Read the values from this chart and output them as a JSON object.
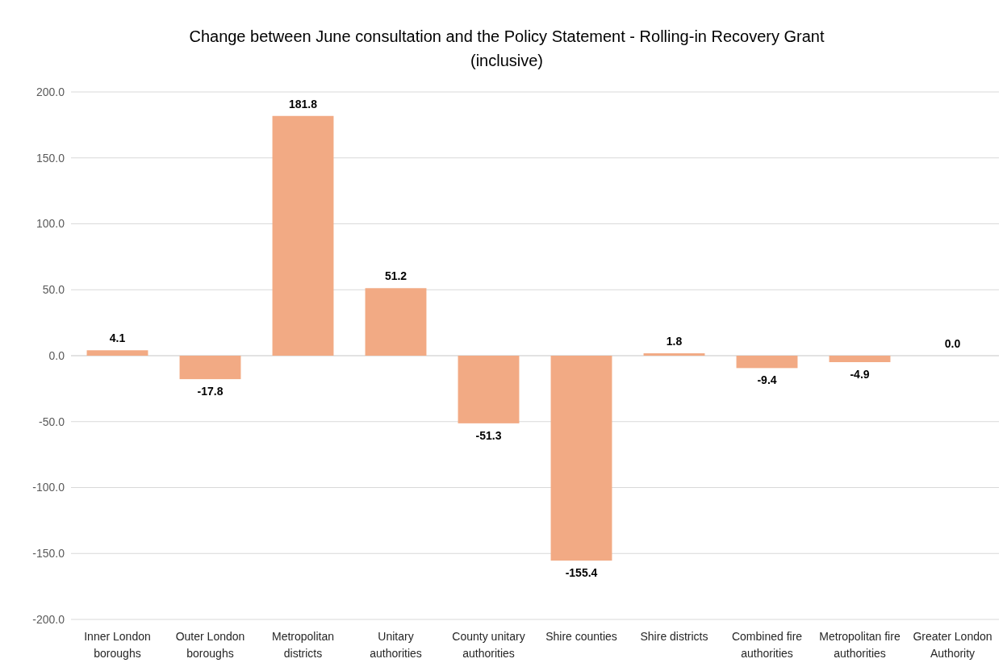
{
  "chart_data": {
    "type": "bar",
    "title": "Change between June consultation and the Policy Statement - Rolling-in Recovery Grant (inclusive)",
    "categories": [
      "Inner London boroughs",
      "Outer London boroughs",
      "Metropolitan districts",
      "Unitary authorities",
      "County unitary authorities",
      "Shire counties",
      "Shire districts",
      "Combined fire authorities",
      "Metropolitan fire authorities",
      "Greater London Authority"
    ],
    "values": [
      4.1,
      -17.8,
      181.8,
      51.2,
      -51.3,
      -155.4,
      1.8,
      -9.4,
      -4.9,
      0.0
    ],
    "value_labels": [
      "4.1",
      "-17.8",
      "181.8",
      "51.2",
      "-51.3",
      "-155.4",
      "1.8",
      "-9.4",
      "-4.9",
      "0.0"
    ],
    "color": "#f2aa84",
    "ylim": [
      -200,
      200
    ],
    "yticks": [
      {
        "value": -200,
        "label": "-200.0"
      },
      {
        "value": -150,
        "label": "-150.0"
      },
      {
        "value": -100,
        "label": "-100.0"
      },
      {
        "value": -50,
        "label": "-50.0"
      },
      {
        "value": 0,
        "label": "0.0"
      },
      {
        "value": 50,
        "label": "50.0"
      },
      {
        "value": 100,
        "label": "100.0"
      },
      {
        "value": 150,
        "label": "150.0"
      },
      {
        "value": 200,
        "label": "200.0"
      }
    ],
    "grid": "y"
  }
}
